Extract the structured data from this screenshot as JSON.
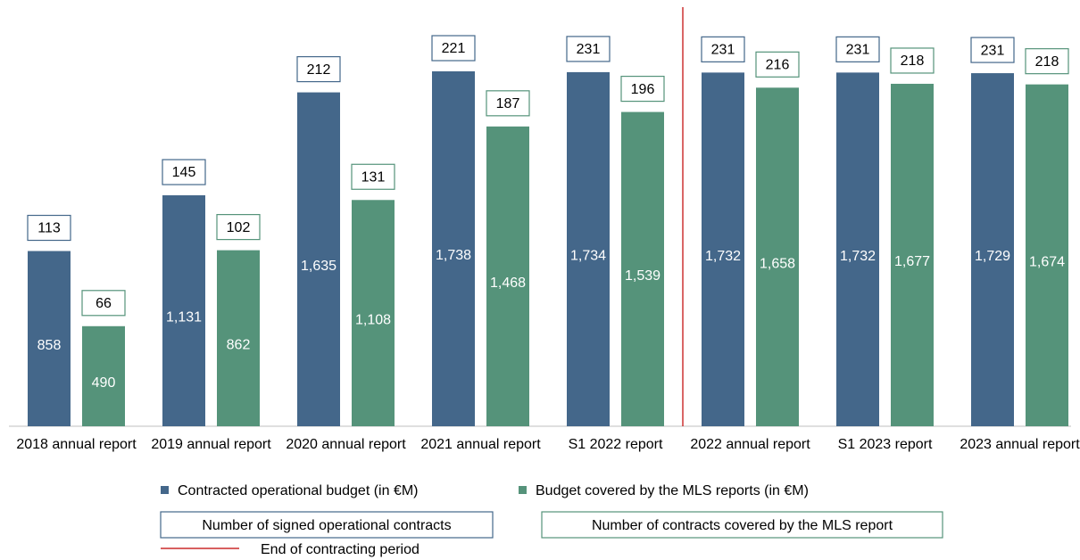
{
  "chart_data": {
    "type": "bar",
    "categories": [
      "2018 annual report",
      "2019 annual report",
      "2020 annual report",
      "2021 annual report",
      "S1 2022 report",
      "2022 annual report",
      "S1 2023 report",
      "2023 annual report"
    ],
    "series": [
      {
        "name": "Contracted operational budget (in €M)",
        "color": "#44678a",
        "values": [
          858,
          1131,
          1635,
          1738,
          1734,
          1732,
          1732,
          1729
        ],
        "value_labels": [
          "858",
          "1,131",
          "1,635",
          "1,738",
          "1,734",
          "1,732",
          "1,732",
          "1,729"
        ],
        "count_name": "Number of signed operational contracts",
        "counts": [
          113,
          145,
          212,
          221,
          231,
          231,
          231,
          231
        ]
      },
      {
        "name": "Budget covered by the MLS reports (in €M)",
        "color": "#55937a",
        "values": [
          490,
          862,
          1108,
          1468,
          1539,
          1658,
          1677,
          1674
        ],
        "value_labels": [
          "490",
          "862",
          "1,108",
          "1,468",
          "1,539",
          "1,658",
          "1,677",
          "1,674"
        ],
        "count_name": "Number of contracts covered by the MLS report",
        "counts": [
          66,
          102,
          131,
          187,
          196,
          216,
          218,
          218
        ]
      }
    ],
    "annotation": {
      "label": "End of contracting period",
      "color": "#c00000"
    },
    "ylim": [
      0,
      2000
    ]
  }
}
